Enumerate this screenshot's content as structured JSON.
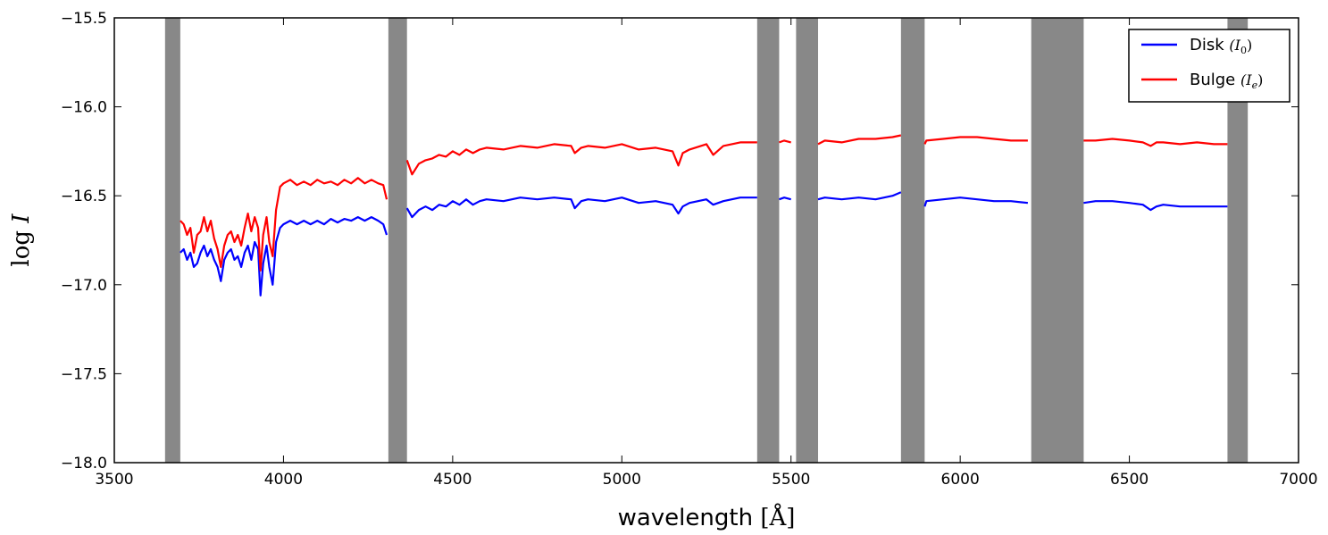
{
  "chart_data": {
    "type": "line",
    "xlabel": "wavelength",
    "xlabel_math": "[Å]",
    "ylabel_math": "log",
    "ylabel_var": "I",
    "xlim": [
      3500,
      7000
    ],
    "ylim": [
      -18.0,
      -15.5
    ],
    "xticks": [
      3500,
      4000,
      4500,
      5000,
      5500,
      6000,
      6500,
      7000
    ],
    "yticks": [
      -18.0,
      -17.5,
      -17.0,
      -16.5,
      -16.0,
      -15.5
    ],
    "xtick_labels": [
      "3500",
      "4000",
      "4500",
      "5000",
      "5500",
      "6000",
      "6500",
      "7000"
    ],
    "ytick_labels": [
      "−18.0",
      "−17.5",
      "−17.0",
      "−16.5",
      "−16.0",
      "−15.5"
    ],
    "masked_bands": [
      [
        3650,
        3695
      ],
      [
        4310,
        4365
      ],
      [
        5400,
        5465
      ],
      [
        5515,
        5580
      ],
      [
        5825,
        5895
      ],
      [
        6210,
        6365
      ],
      [
        6790,
        6850
      ]
    ],
    "legend": {
      "placement": "top-right",
      "entries": [
        {
          "label": "Disk",
          "math": "(I",
          "sub": "0",
          "close": ")",
          "color": "#0000ff"
        },
        {
          "label": "Bulge",
          "math": "(I",
          "sub": "e",
          "close": ")",
          "color": "#ff0000"
        }
      ]
    },
    "series": [
      {
        "name": "Disk (I0)",
        "color": "#0000ff",
        "x": [
          3695,
          3705,
          3715,
          3725,
          3735,
          3745,
          3755,
          3765,
          3775,
          3785,
          3795,
          3805,
          3815,
          3825,
          3835,
          3845,
          3855,
          3865,
          3875,
          3885,
          3895,
          3905,
          3915,
          3925,
          3932,
          3940,
          3950,
          3958,
          3968,
          3978,
          3990,
          4000,
          4020,
          4040,
          4060,
          4080,
          4100,
          4120,
          4140,
          4160,
          4180,
          4200,
          4220,
          4240,
          4260,
          4280,
          4295,
          4305,
          null,
          4365,
          4380,
          4400,
          4420,
          4440,
          4460,
          4480,
          4500,
          4520,
          4540,
          4560,
          4580,
          4600,
          4650,
          4700,
          4750,
          4800,
          4850,
          4861,
          4880,
          4900,
          4950,
          5000,
          5050,
          5100,
          5150,
          5167,
          5180,
          5200,
          5250,
          5270,
          5300,
          5350,
          5400,
          null,
          5465,
          5480,
          5500,
          null,
          5580,
          5600,
          5650,
          5700,
          5750,
          5800,
          5825,
          null,
          5895,
          5900,
          5950,
          6000,
          6050,
          6100,
          6150,
          6200,
          null,
          6365,
          6400,
          6450,
          6500,
          6540,
          6563,
          6580,
          6600,
          6650,
          6700,
          6750,
          6790
        ],
        "y": [
          -16.82,
          -16.8,
          -16.86,
          -16.82,
          -16.9,
          -16.88,
          -16.82,
          -16.78,
          -16.84,
          -16.8,
          -16.86,
          -16.9,
          -16.98,
          -16.86,
          -16.82,
          -16.8,
          -16.86,
          -16.84,
          -16.9,
          -16.82,
          -16.78,
          -16.86,
          -16.76,
          -16.8,
          -17.06,
          -16.88,
          -16.78,
          -16.9,
          -17.0,
          -16.76,
          -16.68,
          -16.66,
          -16.64,
          -16.66,
          -16.64,
          -16.66,
          -16.64,
          -16.66,
          -16.63,
          -16.65,
          -16.63,
          -16.64,
          -16.62,
          -16.64,
          -16.62,
          -16.64,
          -16.66,
          -16.72,
          null,
          -16.57,
          -16.62,
          -16.58,
          -16.56,
          -16.58,
          -16.55,
          -16.56,
          -16.53,
          -16.55,
          -16.52,
          -16.55,
          -16.53,
          -16.52,
          -16.53,
          -16.51,
          -16.52,
          -16.51,
          -16.52,
          -16.57,
          -16.53,
          -16.52,
          -16.53,
          -16.51,
          -16.54,
          -16.53,
          -16.55,
          -16.6,
          -16.56,
          -16.54,
          -16.52,
          -16.55,
          -16.53,
          -16.51,
          -16.51,
          null,
          -16.52,
          -16.51,
          -16.52,
          null,
          -16.52,
          -16.51,
          -16.52,
          -16.51,
          -16.52,
          -16.5,
          -16.48,
          null,
          -16.56,
          -16.53,
          -16.52,
          -16.51,
          -16.52,
          -16.53,
          -16.53,
          -16.54,
          null,
          -16.54,
          -16.53,
          -16.53,
          -16.54,
          -16.55,
          -16.58,
          -16.56,
          -16.55,
          -16.56,
          -16.56,
          -16.56,
          -16.56
        ]
      },
      {
        "name": "Bulge (Ie)",
        "color": "#ff0000",
        "x": [
          3695,
          3705,
          3715,
          3725,
          3735,
          3745,
          3755,
          3765,
          3775,
          3785,
          3795,
          3805,
          3815,
          3825,
          3835,
          3845,
          3855,
          3865,
          3875,
          3885,
          3895,
          3905,
          3915,
          3925,
          3932,
          3940,
          3950,
          3958,
          3968,
          3978,
          3990,
          4000,
          4020,
          4040,
          4060,
          4080,
          4100,
          4120,
          4140,
          4160,
          4180,
          4200,
          4220,
          4240,
          4260,
          4280,
          4295,
          4305,
          null,
          4365,
          4380,
          4400,
          4420,
          4440,
          4460,
          4480,
          4500,
          4520,
          4540,
          4560,
          4580,
          4600,
          4650,
          4700,
          4750,
          4800,
          4850,
          4861,
          4880,
          4900,
          4950,
          5000,
          5050,
          5100,
          5150,
          5167,
          5180,
          5200,
          5250,
          5270,
          5300,
          5350,
          5400,
          null,
          5465,
          5480,
          5500,
          null,
          5580,
          5600,
          5650,
          5700,
          5750,
          5800,
          5825,
          null,
          5895,
          5900,
          5950,
          6000,
          6050,
          6100,
          6150,
          6200,
          null,
          6365,
          6400,
          6450,
          6500,
          6540,
          6563,
          6580,
          6600,
          6650,
          6700,
          6750,
          6790
        ],
        "y": [
          -16.64,
          -16.66,
          -16.72,
          -16.68,
          -16.82,
          -16.72,
          -16.7,
          -16.62,
          -16.7,
          -16.64,
          -16.74,
          -16.8,
          -16.9,
          -16.78,
          -16.72,
          -16.7,
          -16.76,
          -16.72,
          -16.78,
          -16.68,
          -16.6,
          -16.7,
          -16.62,
          -16.68,
          -16.92,
          -16.72,
          -16.62,
          -16.76,
          -16.84,
          -16.58,
          -16.45,
          -16.43,
          -16.41,
          -16.44,
          -16.42,
          -16.44,
          -16.41,
          -16.43,
          -16.42,
          -16.44,
          -16.41,
          -16.43,
          -16.4,
          -16.43,
          -16.41,
          -16.43,
          -16.44,
          -16.52,
          null,
          -16.3,
          -16.38,
          -16.32,
          -16.3,
          -16.29,
          -16.27,
          -16.28,
          -16.25,
          -16.27,
          -16.24,
          -16.26,
          -16.24,
          -16.23,
          -16.24,
          -16.22,
          -16.23,
          -16.21,
          -16.22,
          -16.26,
          -16.23,
          -16.22,
          -16.23,
          -16.21,
          -16.24,
          -16.23,
          -16.25,
          -16.33,
          -16.26,
          -16.24,
          -16.21,
          -16.27,
          -16.22,
          -16.2,
          -16.2,
          null,
          -16.2,
          -16.19,
          -16.2,
          null,
          -16.21,
          -16.19,
          -16.2,
          -16.18,
          -16.18,
          -16.17,
          -16.16,
          null,
          -16.21,
          -16.19,
          -16.18,
          -16.17,
          -16.17,
          -16.18,
          -16.19,
          -16.19,
          null,
          -16.19,
          -16.19,
          -16.18,
          -16.19,
          -16.2,
          -16.22,
          -16.2,
          -16.2,
          -16.21,
          -16.2,
          -16.21,
          -16.21
        ]
      }
    ]
  }
}
